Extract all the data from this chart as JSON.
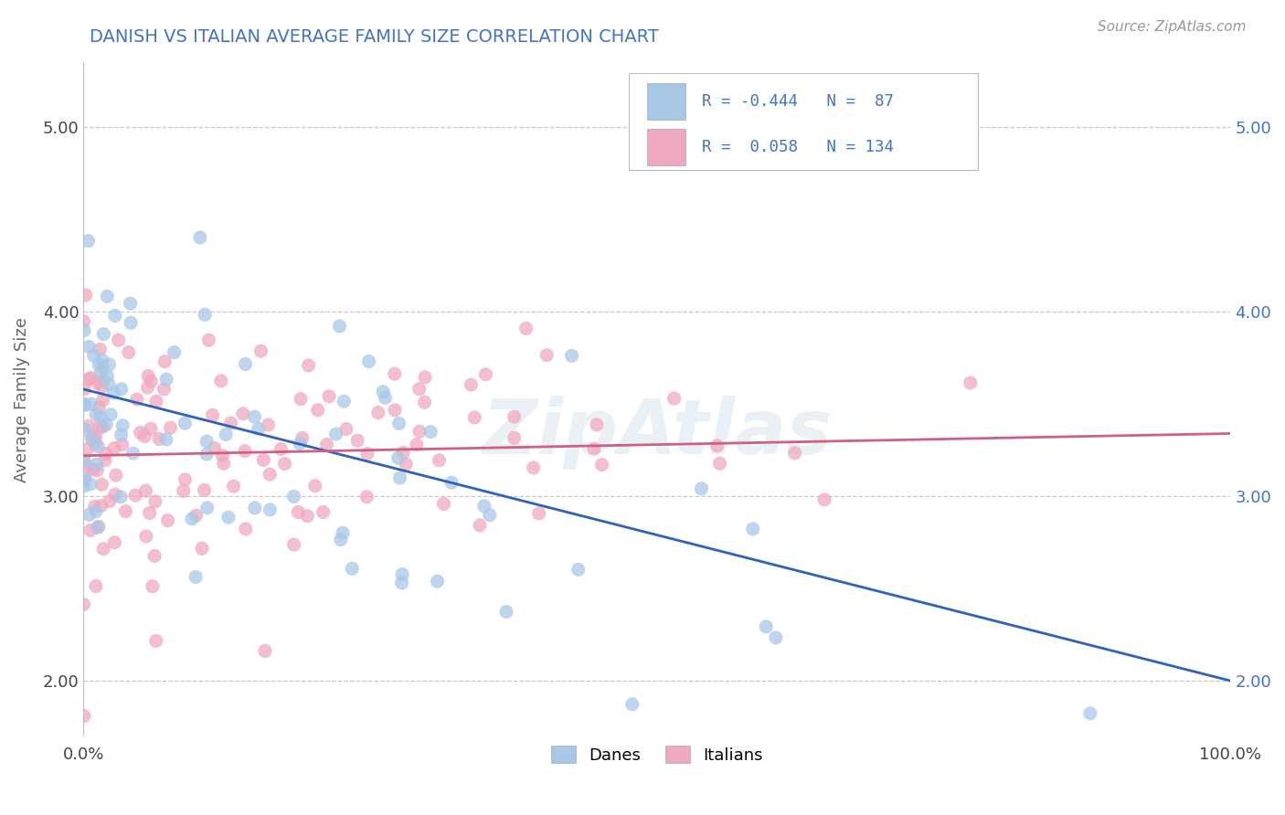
{
  "title": "DANISH VS ITALIAN AVERAGE FAMILY SIZE CORRELATION CHART",
  "source": "Source: ZipAtlas.com",
  "ylabel": "Average Family Size",
  "x_min": 0.0,
  "x_max": 1.0,
  "y_min": 1.7,
  "y_max": 5.35,
  "yticks": [
    2.0,
    3.0,
    4.0,
    5.0
  ],
  "xtick_positions": [
    0.0,
    1.0
  ],
  "xtick_labels": [
    "0.0%",
    "100.0%"
  ],
  "danish_color": "#a8c8e8",
  "italian_color": "#f0a8be",
  "danish_line_color": "#3060c0",
  "italian_line_color": "#d06080",
  "R_danish": -0.444,
  "N_danish": 87,
  "R_italian": 0.058,
  "N_italian": 134,
  "legend_text_color": "#4472c4",
  "title_color": "#4472c4",
  "ylabel_color": "#666666",
  "ytick_left_color": "#444444",
  "ytick_right_color": "#4472c4",
  "watermark": "ZipAtlas",
  "background_color": "#ffffff",
  "grid_color": "#c8c8c8",
  "danish_intercept": 3.58,
  "danish_slope": -1.58,
  "italian_intercept": 3.22,
  "italian_slope": 0.12,
  "danish_noise_std": 0.42,
  "italian_noise_std": 0.38,
  "scatter_size": 120,
  "scatter_alpha": 0.75
}
